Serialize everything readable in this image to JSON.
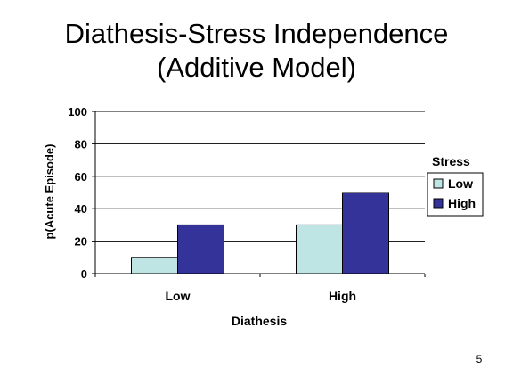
{
  "slide": {
    "title_line1": "Diathesis-Stress Independence",
    "title_line2": "(Additive Model)",
    "page_number": "5"
  },
  "chart_data": {
    "type": "bar",
    "categories": [
      "Low",
      "High"
    ],
    "series": [
      {
        "name": "Low",
        "values": [
          10,
          30
        ],
        "color": "#bfe4e4"
      },
      {
        "name": "High",
        "values": [
          30,
          50
        ],
        "color": "#33339a"
      }
    ],
    "title": "",
    "xlabel": "Diathesis",
    "ylabel": "p(Acute Episode)",
    "ylim": [
      0,
      100
    ],
    "yticks": [
      "0",
      "20",
      "40",
      "60",
      "80",
      "100"
    ],
    "legend_title": "Stress",
    "legend_position": "right",
    "grid": true
  }
}
